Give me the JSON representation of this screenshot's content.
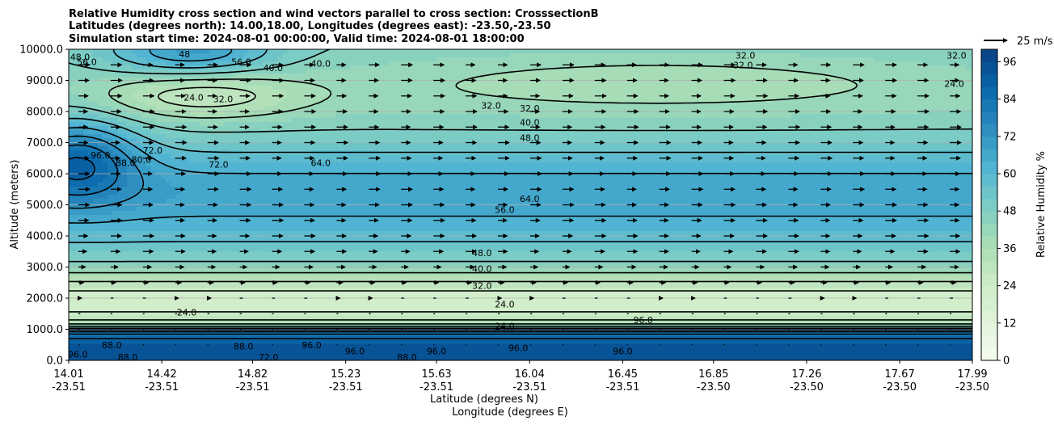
{
  "chart_data": {
    "type": "heatmap",
    "title_lines": [
      "Relative Humidity cross section and wind vectors parallel to cross section: CrosssectionB",
      "Latitudes (degrees north): 14.00,18.00, Longitudes (degrees east): -23.50,-23.50",
      "Simulation start time: 2024-08-01 00:00:00, Valid time: 2024-08-01 18:00:00"
    ],
    "ylabel": "Altitude (meters)",
    "xlabel_lat": "Latitude (degrees N)",
    "xlabel_lon": "Longitude (degrees E)",
    "ylim": [
      0,
      10000
    ],
    "y_ticks": [
      "0.0",
      "1000.0",
      "2000.0",
      "3000.0",
      "4000.0",
      "5000.0",
      "6000.0",
      "7000.0",
      "8000.0",
      "9000.0",
      "10000.0"
    ],
    "y_tick_values": [
      0,
      1000,
      2000,
      3000,
      4000,
      5000,
      6000,
      7000,
      8000,
      9000,
      10000
    ],
    "x_ticks_lat": [
      "14.01",
      "14.42",
      "14.82",
      "15.23",
      "15.63",
      "16.04",
      "16.45",
      "16.85",
      "17.26",
      "17.67",
      "17.99"
    ],
    "x_ticks_lon": [
      "-23.51",
      "-23.51",
      "-23.51",
      "-23.51",
      "-23.51",
      "-23.51",
      "-23.51",
      "-23.50",
      "-23.50",
      "-23.50",
      "-23.50"
    ],
    "x_tick_values": [
      14.01,
      14.42,
      14.82,
      15.23,
      15.63,
      16.04,
      16.45,
      16.85,
      17.26,
      17.67,
      17.99
    ],
    "xlim": [
      14.01,
      17.99
    ],
    "grid": true,
    "colorbar": {
      "label": "Relative Humidity %",
      "ticks": [
        "0",
        "12",
        "24",
        "36",
        "48",
        "60",
        "72",
        "84",
        "96"
      ],
      "tick_values": [
        0,
        12,
        24,
        36,
        48,
        60,
        72,
        84,
        96
      ],
      "min": 0,
      "max": 100,
      "step": 4,
      "colormap": "GnBu"
    },
    "wind_key": {
      "label": "25 m/s",
      "speed": 25
    },
    "contour_labels": [
      {
        "text": "48.0",
        "lat": 14.06,
        "alt": 9750
      },
      {
        "text": "56.0",
        "lat": 14.09,
        "alt": 9600
      },
      {
        "text": "48",
        "lat": 14.52,
        "alt": 9850
      },
      {
        "text": "56.0",
        "lat": 14.77,
        "alt": 9600
      },
      {
        "text": "40.0",
        "lat": 14.91,
        "alt": 9400
      },
      {
        "text": "40.0",
        "lat": 15.12,
        "alt": 9550
      },
      {
        "text": "24.0",
        "lat": 14.56,
        "alt": 8450
      },
      {
        "text": "32.0",
        "lat": 14.69,
        "alt": 8400
      },
      {
        "text": "32.0",
        "lat": 15.87,
        "alt": 8200
      },
      {
        "text": "32.0",
        "lat": 16.04,
        "alt": 8100
      },
      {
        "text": "40.0",
        "lat": 16.04,
        "alt": 7650
      },
      {
        "text": "48.0",
        "lat": 16.04,
        "alt": 7150
      },
      {
        "text": "32.0",
        "lat": 16.99,
        "alt": 9800
      },
      {
        "text": "32.0",
        "lat": 16.98,
        "alt": 9500
      },
      {
        "text": "32.0",
        "lat": 17.92,
        "alt": 9800
      },
      {
        "text": "24.0",
        "lat": 17.91,
        "alt": 8900
      },
      {
        "text": "96.0",
        "lat": 14.15,
        "alt": 6600
      },
      {
        "text": "88.0",
        "lat": 14.26,
        "alt": 6350
      },
      {
        "text": "80.0",
        "lat": 14.33,
        "alt": 6450
      },
      {
        "text": "72.0",
        "lat": 14.38,
        "alt": 6750
      },
      {
        "text": "72.0",
        "lat": 14.67,
        "alt": 6300
      },
      {
        "text": "64.0",
        "lat": 15.12,
        "alt": 6350
      },
      {
        "text": "64.0",
        "lat": 16.04,
        "alt": 5200
      },
      {
        "text": "56.0",
        "lat": 15.93,
        "alt": 4850
      },
      {
        "text": "48.0",
        "lat": 15.83,
        "alt": 3450
      },
      {
        "text": "40.0",
        "lat": 15.83,
        "alt": 2950
      },
      {
        "text": "32.0",
        "lat": 15.83,
        "alt": 2400
      },
      {
        "text": "24.0",
        "lat": 15.93,
        "alt": 1800
      },
      {
        "text": "24.0",
        "lat": 14.53,
        "alt": 1550
      },
      {
        "text": "24.0",
        "lat": 15.93,
        "alt": 1100
      },
      {
        "text": "96.0",
        "lat": 16.54,
        "alt": 1300
      },
      {
        "text": "96.0",
        "lat": 14.05,
        "alt": 200
      },
      {
        "text": "88.0",
        "lat": 14.2,
        "alt": 500
      },
      {
        "text": "88.0",
        "lat": 14.27,
        "alt": 100
      },
      {
        "text": "88.0",
        "lat": 14.78,
        "alt": 450
      },
      {
        "text": "72.0",
        "lat": 14.89,
        "alt": 100
      },
      {
        "text": "96.0",
        "lat": 15.08,
        "alt": 500
      },
      {
        "text": "96.0",
        "lat": 15.27,
        "alt": 300
      },
      {
        "text": "88.0",
        "lat": 15.5,
        "alt": 100
      },
      {
        "text": "96.0",
        "lat": 15.63,
        "alt": 300
      },
      {
        "text": "96.0",
        "lat": 15.99,
        "alt": 400
      },
      {
        "text": "96.0",
        "lat": 16.45,
        "alt": 300
      }
    ]
  }
}
